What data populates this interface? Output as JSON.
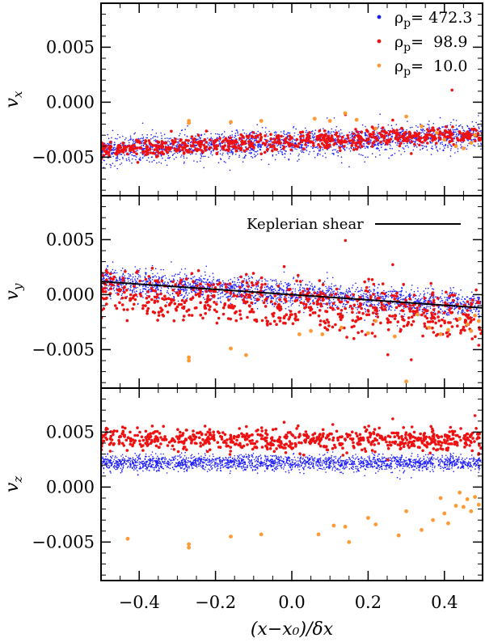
{
  "chart_data": {
    "type": "scatter",
    "figure_xlabel": "(x−x₀)/δx",
    "xlim": [
      -0.5,
      0.5
    ],
    "xticks": [
      -0.4,
      -0.2,
      0.0,
      0.2,
      0.4
    ],
    "xtick_labels": [
      "−0.4",
      "−0.2",
      "0.0",
      "0.2",
      "0.4"
    ],
    "legend": {
      "placement": "top-right of top panel",
      "entries": [
        {
          "label": "ρp= 472.3",
          "base": "ρ",
          "sub": "p",
          "value": "= 472.3",
          "color": "#1a1aff",
          "series": "rho_472_3"
        },
        {
          "label": "ρp=  98.9",
          "base": "ρ",
          "sub": "p",
          "value": "=  98.9",
          "color": "#ee1111",
          "series": "rho_98_9"
        },
        {
          "label": "ρp=  10.0",
          "base": "ρ",
          "sub": "p",
          "value": "=  10.0",
          "color": "#ff9933",
          "series": "rho_10_0"
        }
      ]
    },
    "panels": [
      {
        "id": "vx",
        "ylabel": "vx",
        "ylabel_base": "v",
        "ylabel_sub": "x",
        "ylim": [
          -0.0085,
          0.009
        ],
        "yticks": [
          -0.005,
          0.0,
          0.005
        ],
        "ytick_labels": [
          "−0.005",
          "0.000",
          "0.005"
        ],
        "series": [
          {
            "name": "ρp= 472.3",
            "color": "#1a1aff",
            "trend": {
              "slope": 0.0014,
              "intercept": -0.0037
            },
            "spread": 0.0006,
            "count": 2200,
            "size": 0.8
          },
          {
            "name": "ρp= 98.9",
            "color": "#ee1111",
            "trend": {
              "slope": 0.0015,
              "intercept": -0.0036
            },
            "spread": 0.0004,
            "count": 700,
            "size": 1.8
          },
          {
            "name": "ρp= 10.0",
            "color": "#ff9933",
            "points": [
              [
                -0.27,
                -0.0017
              ],
              [
                -0.27,
                -0.0019
              ],
              [
                -0.16,
                -0.0018
              ],
              [
                -0.08,
                -0.0017
              ],
              [
                0.06,
                -0.0015
              ],
              [
                0.1,
                -0.0017
              ],
              [
                0.14,
                -0.001
              ],
              [
                0.17,
                -0.0016
              ],
              [
                0.22,
                -0.0024
              ],
              [
                0.3,
                -0.0013
              ],
              [
                0.34,
                -0.0022
              ],
              [
                0.38,
                -0.0028
              ],
              [
                0.4,
                -0.0034
              ],
              [
                0.43,
                -0.004
              ],
              [
                0.45,
                -0.0042
              ],
              [
                0.47,
                -0.0037
              ],
              [
                0.48,
                -0.003
              ]
            ],
            "size": 2.4
          }
        ],
        "outliers": [
          [
            0.42,
            0.0011
          ],
          [
            0.25,
            -0.0038
          ],
          [
            -0.08,
            -0.0047
          ]
        ]
      },
      {
        "id": "vy",
        "ylabel": "vy",
        "ylabel_base": "v",
        "ylabel_sub": "y",
        "ylim": [
          -0.0085,
          0.009
        ],
        "yticks": [
          -0.005,
          0.0,
          0.005
        ],
        "ytick_labels": [
          "−0.005",
          "0.000",
          "0.005"
        ],
        "annotation": "Keplerian shear",
        "reference_line": {
          "name": "Keplerian shear",
          "x": [
            -0.5,
            0.5
          ],
          "y": [
            0.0012,
            -0.0012
          ]
        },
        "series": [
          {
            "name": "ρp= 472.3",
            "color": "#1a1aff",
            "trend": {
              "slope": -0.0023,
              "intercept": 0.0001
            },
            "spread": 0.0006,
            "count": 2200,
            "size": 0.8
          },
          {
            "name": "ρp= 98.9",
            "color": "#ee1111",
            "trend": {
              "slope": -0.0022,
              "intercept": -0.001
            },
            "spread": 0.0011,
            "count": 700,
            "size": 1.8
          },
          {
            "name": "ρp= 10.0",
            "color": "#ff9933",
            "points": [
              [
                -0.27,
                -0.0057
              ],
              [
                -0.27,
                -0.006
              ],
              [
                -0.16,
                -0.0049
              ],
              [
                -0.12,
                -0.0055
              ],
              [
                0.02,
                -0.0036
              ],
              [
                0.05,
                -0.0033
              ],
              [
                0.08,
                -0.0036
              ],
              [
                0.13,
                -0.003
              ],
              [
                0.2,
                -0.0035
              ],
              [
                0.22,
                -0.0024
              ],
              [
                0.27,
                -0.0038
              ],
              [
                0.3,
                -0.0079
              ],
              [
                0.33,
                -0.0018
              ],
              [
                0.36,
                -0.003
              ],
              [
                0.39,
                -0.0036
              ],
              [
                0.41,
                -0.0032
              ],
              [
                0.44,
                -0.0022
              ],
              [
                0.46,
                -0.0027
              ],
              [
                0.47,
                -0.0033
              ],
              [
                0.48,
                -0.0019
              ],
              [
                0.49,
                -0.0024
              ]
            ],
            "size": 2.4
          }
        ]
      },
      {
        "id": "vz",
        "ylabel": "vz",
        "ylabel_base": "v",
        "ylabel_sub": "z",
        "ylim": [
          -0.0085,
          0.009
        ],
        "yticks": [
          -0.005,
          0.0,
          0.005
        ],
        "ytick_labels": [
          "−0.005",
          "0.000",
          "0.005"
        ],
        "series": [
          {
            "name": "ρp= 472.3",
            "color": "#1a1aff",
            "trend": {
              "slope": 0.0,
              "intercept": 0.0022
            },
            "spread": 0.00035,
            "count": 2200,
            "size": 0.8
          },
          {
            "name": "ρp= 98.9",
            "color": "#ee1111",
            "trend": {
              "slope": -0.0002,
              "intercept": 0.0043
            },
            "spread": 0.0005,
            "count": 700,
            "size": 1.8
          },
          {
            "name": "ρp= 10.0",
            "color": "#ff9933",
            "points": [
              [
                -0.43,
                -0.0047
              ],
              [
                -0.27,
                -0.0052
              ],
              [
                -0.27,
                -0.0055
              ],
              [
                -0.16,
                -0.0045
              ],
              [
                -0.08,
                -0.0043
              ],
              [
                0.07,
                -0.0043
              ],
              [
                0.11,
                -0.0035
              ],
              [
                0.14,
                -0.0036
              ],
              [
                0.15,
                -0.005
              ],
              [
                0.2,
                -0.0028
              ],
              [
                0.22,
                -0.0034
              ],
              [
                0.28,
                -0.0044
              ],
              [
                0.3,
                -0.0022
              ],
              [
                0.34,
                -0.0039
              ],
              [
                0.37,
                -0.003
              ],
              [
                0.39,
                -0.001
              ],
              [
                0.4,
                -0.0024
              ],
              [
                0.41,
                -0.0033
              ],
              [
                0.43,
                -0.0017
              ],
              [
                0.44,
                -0.0005
              ],
              [
                0.45,
                -0.0018
              ],
              [
                0.46,
                -0.0011
              ],
              [
                0.47,
                -0.0022
              ],
              [
                0.48,
                -0.0009
              ],
              [
                0.49,
                -0.0016
              ]
            ],
            "size": 2.4
          }
        ],
        "outliers": [
          [
            0.48,
            0.0065
          ]
        ]
      }
    ]
  }
}
